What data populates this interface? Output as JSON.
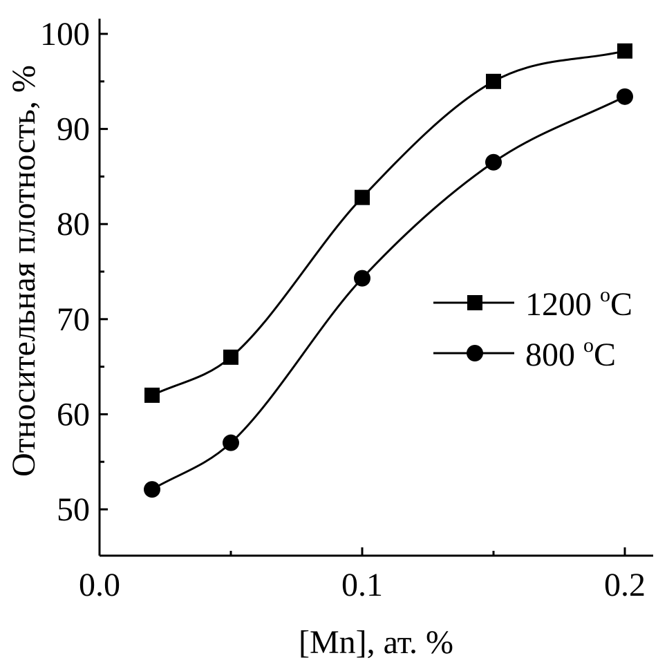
{
  "chart_data": {
    "type": "line",
    "title": "",
    "xlabel": "[Mn], ат. %",
    "ylabel": "Относительная плотность, %",
    "xlim": [
      0.0,
      0.21
    ],
    "ylim": [
      45,
      100
    ],
    "x_ticks": [
      0.0,
      0.1,
      0.2
    ],
    "x_tick_labels": [
      "0.0",
      "0.1",
      "0.2"
    ],
    "y_ticks": [
      50,
      60,
      70,
      80,
      90,
      100
    ],
    "y_tick_labels": [
      "50",
      "60",
      "70",
      "80",
      "90",
      "100"
    ],
    "y_minor_ticks": [
      55,
      65,
      75,
      85,
      95
    ],
    "x_minor_ticks": [
      0.05,
      0.15
    ],
    "grid": false,
    "legend_position": "right",
    "x": [
      0.02,
      0.05,
      0.1,
      0.15,
      0.2
    ],
    "series": [
      {
        "name": "1200 °C",
        "label_main": "1200 ",
        "label_sup": "o",
        "label_unit": "C",
        "marker": "square",
        "values": [
          62.0,
          66.0,
          82.8,
          95.0,
          98.2
        ]
      },
      {
        "name": "800 °C",
        "label_main": "800 ",
        "label_sup": "o",
        "label_unit": "C",
        "marker": "circle",
        "values": [
          52.1,
          57.0,
          74.3,
          86.5,
          93.4
        ]
      }
    ]
  }
}
